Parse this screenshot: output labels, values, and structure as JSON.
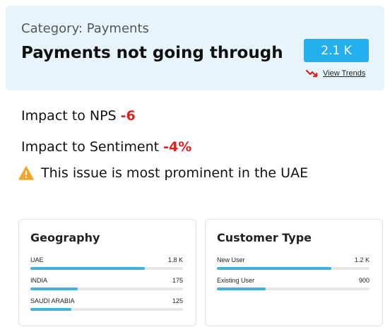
{
  "header": {
    "category": "Category: Payments",
    "title": "Payments not going through",
    "count": "2.1 K",
    "trends_link": "View Trends"
  },
  "metrics": {
    "nps_label": "Impact to NPS",
    "nps_value": "-6",
    "sentiment_label": "Impact to Sentiment",
    "sentiment_value": "-4%",
    "warning_text": "This issue is most prominent in the UAE"
  },
  "geography": {
    "title": "Geography",
    "rows": [
      {
        "label": "UAE",
        "value": "1.8 K",
        "fraction": 0.75
      },
      {
        "label": "INDIA",
        "value": "175",
        "fraction": 0.31
      },
      {
        "label": "SAUDI ARABIA",
        "value": "125",
        "fraction": 0.27
      }
    ]
  },
  "customer_type": {
    "title": "Customer Type",
    "rows": [
      {
        "label": "New User",
        "value": "1.2 K",
        "fraction": 0.75
      },
      {
        "label": "Existing User",
        "value": "900",
        "fraction": 0.32
      }
    ]
  },
  "colors": {
    "badge": "#24b0ef",
    "bar": "#3fb3db",
    "negative": "#e02020",
    "warning": "#f4a52a",
    "trend_icon": "#e02020"
  },
  "icons": {
    "trend": "trend-down-icon",
    "warning": "warning-icon"
  }
}
